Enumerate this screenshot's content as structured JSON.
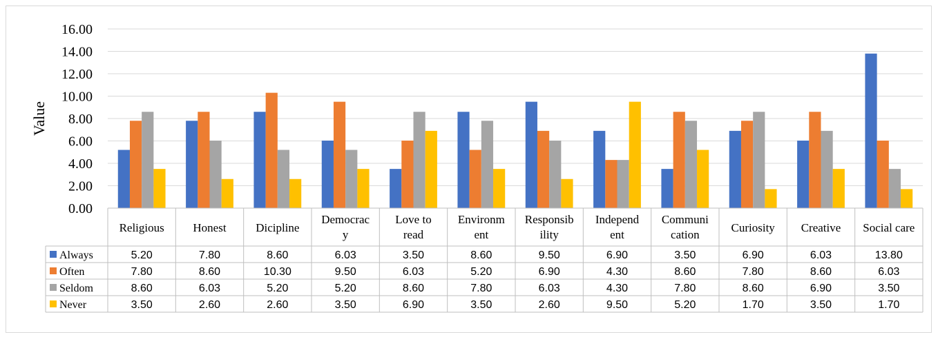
{
  "chart_data": {
    "type": "bar",
    "ylabel": "Value",
    "xlabel": "",
    "ylim": [
      0,
      16
    ],
    "y_ticks": [
      "0.00",
      "2.00",
      "4.00",
      "6.00",
      "8.00",
      "10.00",
      "12.00",
      "14.00",
      "16.00"
    ],
    "grid": true,
    "legend_placement": "data-table-left",
    "categories": [
      [
        "Religious"
      ],
      [
        "Honest"
      ],
      [
        "Dicipline"
      ],
      [
        "Democrac",
        "y"
      ],
      [
        "Love to",
        "read"
      ],
      [
        "Environm",
        "ent"
      ],
      [
        "Responsib",
        "ility"
      ],
      [
        "Independ",
        "ent"
      ],
      [
        "Communi",
        "cation"
      ],
      [
        "Curiosity"
      ],
      [
        "Creative"
      ],
      [
        "Social care"
      ]
    ],
    "series": [
      {
        "name": "Always",
        "color": "#4472c4",
        "values": [
          5.2,
          7.8,
          8.6,
          6.03,
          3.5,
          8.6,
          9.5,
          6.9,
          3.5,
          6.9,
          6.03,
          13.8
        ],
        "labels": [
          "5.20",
          "7.80",
          "8.60",
          "6.03",
          "3.50",
          "8.60",
          "9.50",
          "6.90",
          "3.50",
          "6.90",
          "6.03",
          "13.80"
        ]
      },
      {
        "name": "Often",
        "color": "#ed7d31",
        "values": [
          7.8,
          8.6,
          10.3,
          9.5,
          6.03,
          5.2,
          6.9,
          4.3,
          8.6,
          7.8,
          8.6,
          6.03
        ],
        "labels": [
          "7.80",
          "8.60",
          "10.30",
          "9.50",
          "6.03",
          "5.20",
          "6.90",
          "4.30",
          "8.60",
          "7.80",
          "8.60",
          "6.03"
        ]
      },
      {
        "name": "Seldom",
        "color": "#a5a5a5",
        "values": [
          8.6,
          6.03,
          5.2,
          5.2,
          8.6,
          7.8,
          6.03,
          4.3,
          7.8,
          8.6,
          6.9,
          3.5
        ],
        "labels": [
          "8.60",
          "6.03",
          "5.20",
          "5.20",
          "8.60",
          "7.80",
          "6.03",
          "4.30",
          "7.80",
          "8.60",
          "6.90",
          "3.50"
        ]
      },
      {
        "name": "Never",
        "color": "#ffc000",
        "values": [
          3.5,
          2.6,
          2.6,
          3.5,
          6.9,
          3.5,
          2.6,
          9.5,
          5.2,
          1.7,
          3.5,
          1.7
        ],
        "labels": [
          "3.50",
          "2.60",
          "2.60",
          "3.50",
          "6.90",
          "3.50",
          "2.60",
          "9.50",
          "5.20",
          "1.70",
          "3.50",
          "1.70"
        ]
      }
    ]
  }
}
